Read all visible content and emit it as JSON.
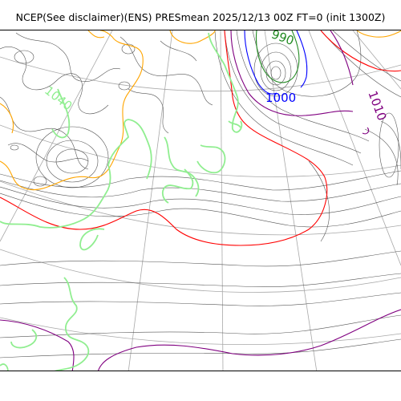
{
  "title": "NCEP(See disclaimer)(ENS) PRESmean 2025/12/13 00Z FT=0 (init 1300Z)",
  "contour_labels": [
    {
      "text": "1040",
      "color": "#90ee90"
    },
    {
      "text": "1000",
      "color": "#0000ff"
    },
    {
      "text": "1010",
      "color": "#800080"
    },
    {
      "text": "990",
      "color": "#228b22"
    }
  ],
  "colors": {
    "background": "#ffffff",
    "isobar": "#555555",
    "graticule": "#a8a8a8",
    "coastline": "#90ee90",
    "isobar_1020": "#ff0000",
    "isobar_1030": "#ffa500",
    "isobar_1010": "#800080",
    "isobar_1000": "#0000ff",
    "isobar_990": "#228b22"
  }
}
